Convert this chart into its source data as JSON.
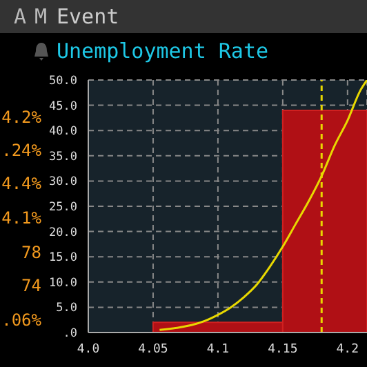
{
  "chart_data": {
    "type": "histogram",
    "title": "Unemployment Rate",
    "annotations": [
      "A",
      "M",
      "Event",
      "4.2%",
      ".24%",
      "4.4%",
      "4.1%",
      "78",
      "74",
      ".06%"
    ],
    "bins": [
      4.05,
      4.15,
      4.215
    ],
    "values": [
      2,
      44
    ],
    "color": "#b01015",
    "series": [
      {
        "type": "line",
        "color": "#e8d800",
        "x": [
          4.055,
          4.07,
          4.08,
          4.09,
          4.1,
          4.11,
          4.12,
          4.13,
          4.14,
          4.15,
          4.16,
          4.17,
          4.18,
          4.19,
          4.2,
          4.21,
          4.215
        ],
        "values": [
          0.5,
          1,
          1.5,
          2.3,
          3.5,
          5,
          7,
          9.5,
          13,
          17,
          21.5,
          26,
          31,
          37,
          42,
          48,
          50
        ]
      }
    ],
    "ref_lines": [
      {
        "axis": "x",
        "value": 4.18,
        "color": "#e8d800",
        "line_style": "dashed"
      }
    ],
    "xlim": [
      4.0,
      4.215
    ],
    "xticks": [
      {
        "value": 4,
        "label": "4.0"
      },
      4.05,
      4.1,
      4.15,
      4.2
    ],
    "ylim": [
      0,
      50
    ],
    "yticks": [
      {
        "value": 0,
        "label": ".0"
      },
      {
        "value": 5,
        "label": "5.0"
      },
      {
        "value": 10,
        "label": "10.0"
      },
      {
        "value": 15,
        "label": "15.0"
      },
      {
        "value": 20,
        "label": "20.0"
      },
      {
        "value": 25,
        "label": "25.0"
      },
      {
        "value": 30,
        "label": "30.0"
      },
      {
        "value": 35,
        "label": "35.0"
      },
      {
        "value": 40,
        "label": "40.0"
      },
      {
        "value": 45,
        "label": "45.0"
      },
      {
        "value": 50,
        "label": "50.0"
      }
    ],
    "grid": true,
    "marker": "none"
  }
}
